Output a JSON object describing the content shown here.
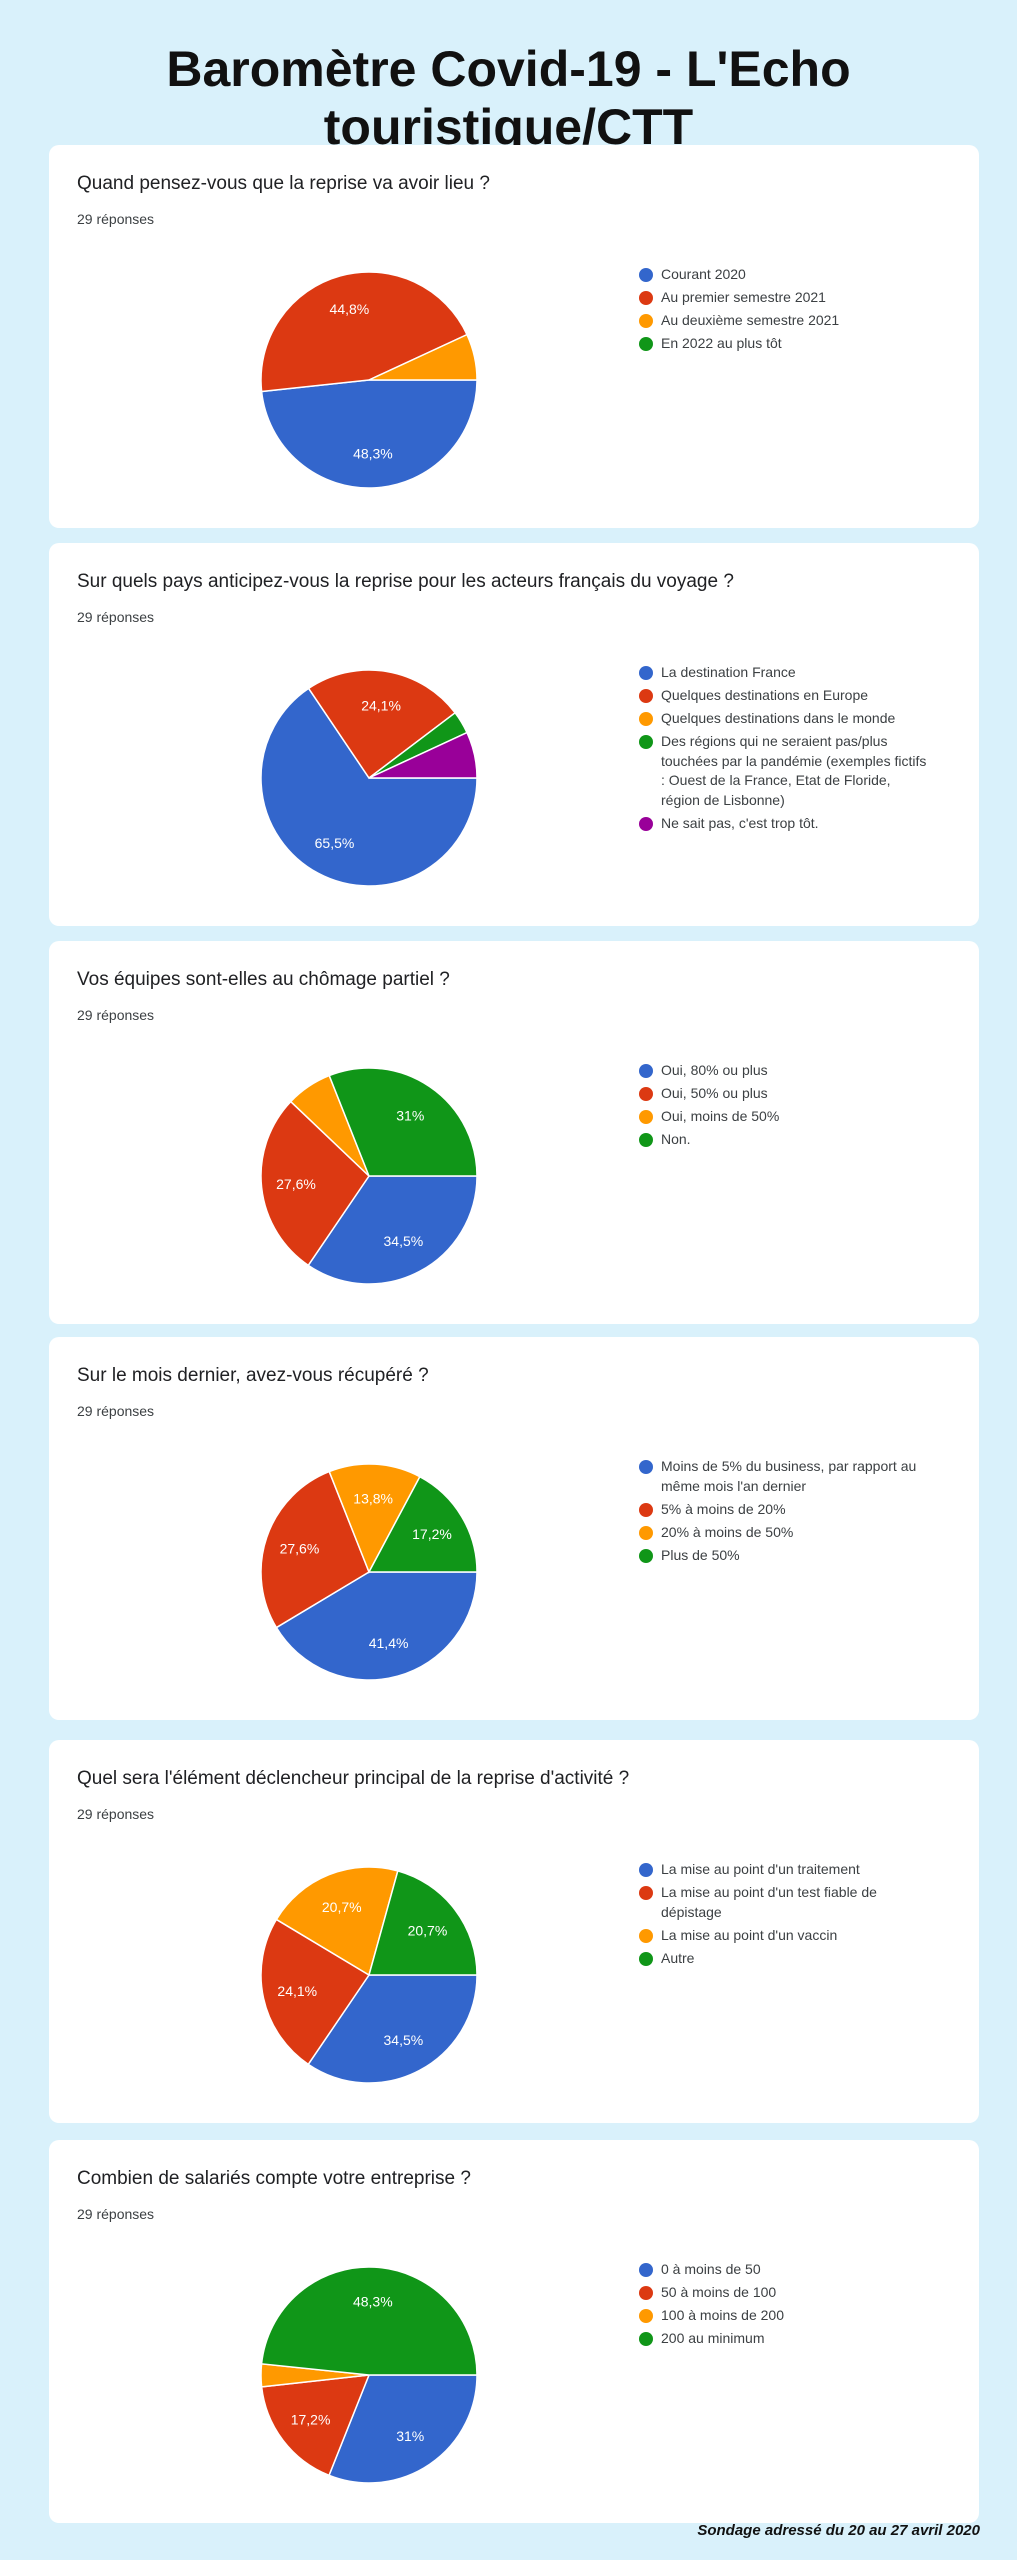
{
  "page": {
    "title": "Baromètre Covid-19 - L'Echo touristique/CTT",
    "footer": "Sondage adressé du 20 au 27 avril 2020"
  },
  "colors": {
    "blue": "#3366cc",
    "red": "#dc3912",
    "orange": "#ff9900",
    "green": "#109618",
    "purple": "#990099"
  },
  "chart_data": [
    {
      "type": "pie",
      "title": "Quand pensez-vous que la reprise va avoir lieu ?",
      "responses": "29 réponses",
      "legend_position": "right",
      "categories": [
        "Courant 2020",
        "Au premier semestre 2021",
        "Au deuxième semestre 2021",
        "En 2022 au plus tôt"
      ],
      "values": [
        48.3,
        44.8,
        6.9,
        0
      ],
      "labels": [
        "48,3%",
        "44,8%",
        "",
        ""
      ],
      "colors": [
        "#3366cc",
        "#dc3912",
        "#ff9900",
        "#109618"
      ]
    },
    {
      "type": "pie",
      "title": "Sur quels pays anticipez-vous la reprise pour les acteurs français du voyage ?",
      "responses": "29 réponses",
      "legend_position": "right",
      "categories": [
        "La destination France",
        "Quelques destinations en Europe",
        "Quelques destinations dans le monde",
        "Des régions qui ne seraient pas/plus touchées par la pandémie (exemples fictifs : Ouest de la France, Etat de Floride, région de Lisbonne)",
        "Ne sait pas, c'est trop tôt."
      ],
      "values": [
        65.5,
        24.1,
        0,
        3.4,
        6.9
      ],
      "labels": [
        "65,5%",
        "24,1%",
        "",
        "",
        ""
      ],
      "colors": [
        "#3366cc",
        "#dc3912",
        "#ff9900",
        "#109618",
        "#990099"
      ]
    },
    {
      "type": "pie",
      "title": "Vos équipes sont-elles au chômage partiel ?",
      "responses": "29 réponses",
      "legend_position": "right",
      "categories": [
        "Oui, 80% ou plus",
        "Oui, 50% ou plus",
        "Oui, moins de 50%",
        "Non."
      ],
      "values": [
        34.5,
        27.6,
        6.9,
        31
      ],
      "labels": [
        "34,5%",
        "27,6%",
        "",
        "31%"
      ],
      "colors": [
        "#3366cc",
        "#dc3912",
        "#ff9900",
        "#109618"
      ]
    },
    {
      "type": "pie",
      "title": "Sur le mois dernier, avez-vous récupéré ?",
      "responses": "29 réponses",
      "legend_position": "right",
      "categories": [
        "Moins de 5% du business, par rapport au même mois l'an dernier",
        "5% à moins de 20%",
        "20% à moins de 50%",
        "Plus de 50%"
      ],
      "values": [
        41.4,
        27.6,
        13.8,
        17.2
      ],
      "labels": [
        "41,4%",
        "27,6%",
        "13,8%",
        "17,2%"
      ],
      "colors": [
        "#3366cc",
        "#dc3912",
        "#ff9900",
        "#109618"
      ]
    },
    {
      "type": "pie",
      "title": "Quel sera l'élément déclencheur principal de la reprise d'activité ?",
      "responses": "29 réponses",
      "legend_position": "right",
      "categories": [
        "La mise au point d'un traitement",
        "La mise au point d'un test fiable de dépistage",
        "La mise au point d'un vaccin",
        "Autre"
      ],
      "values": [
        34.5,
        24.1,
        20.7,
        20.7
      ],
      "labels": [
        "34,5%",
        "24,1%",
        "20,7%",
        "20,7%"
      ],
      "colors": [
        "#3366cc",
        "#dc3912",
        "#ff9900",
        "#109618"
      ]
    },
    {
      "type": "pie",
      "title": "Combien de salariés compte votre entreprise ?",
      "responses": "29 réponses",
      "legend_position": "right",
      "categories": [
        "0 à moins de 50",
        "50 à moins de 100",
        "100 à moins de 200",
        "200 au minimum"
      ],
      "values": [
        31,
        17.2,
        3.4,
        48.3
      ],
      "labels": [
        "31%",
        "17,2%",
        "",
        "48,3%"
      ],
      "colors": [
        "#3366cc",
        "#dc3912",
        "#ff9900",
        "#109618"
      ]
    }
  ]
}
